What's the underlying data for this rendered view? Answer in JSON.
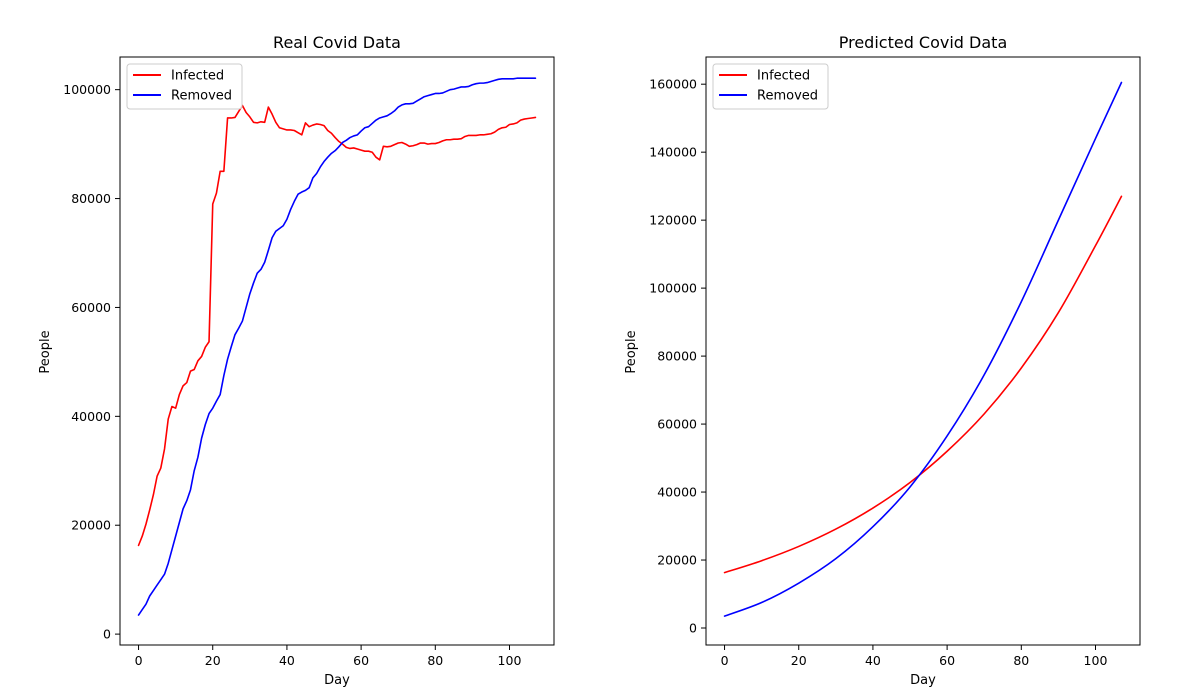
{
  "figure": {
    "background": "#ffffff",
    "axis_color": "#000000"
  },
  "chart_data": [
    {
      "type": "line",
      "title": "Real Covid Data",
      "xlabel": "Day",
      "ylabel": "People",
      "xlim": [
        -5,
        112
      ],
      "ylim": [
        -2000,
        106000
      ],
      "xticks": [
        0,
        20,
        40,
        60,
        80,
        100
      ],
      "yticks": [
        0,
        20000,
        40000,
        60000,
        80000,
        100000
      ],
      "grid": false,
      "legend_position": "top-left",
      "series": [
        {
          "name": "Infected",
          "color": "#ff0000",
          "points": [
            [
              0,
              16300
            ],
            [
              1,
              18000
            ],
            [
              2,
              20200
            ],
            [
              3,
              22800
            ],
            [
              4,
              25600
            ],
            [
              5,
              29000
            ],
            [
              6,
              30500
            ],
            [
              7,
              34000
            ],
            [
              8,
              39500
            ],
            [
              9,
              41800
            ],
            [
              10,
              41500
            ],
            [
              11,
              44000
            ],
            [
              12,
              45600
            ],
            [
              13,
              46200
            ],
            [
              14,
              48300
            ],
            [
              15,
              48600
            ],
            [
              16,
              50200
            ],
            [
              17,
              51000
            ],
            [
              18,
              52700
            ],
            [
              19,
              53700
            ],
            [
              20,
              79000
            ],
            [
              21,
              81000
            ],
            [
              22,
              85000
            ],
            [
              23,
              85000
            ],
            [
              24,
              94800
            ],
            [
              25,
              94800
            ],
            [
              26,
              94900
            ],
            [
              27,
              96000
            ],
            [
              28,
              97100
            ],
            [
              29,
              95800
            ],
            [
              30,
              95000
            ],
            [
              31,
              94000
            ],
            [
              32,
              93900
            ],
            [
              33,
              94100
            ],
            [
              34,
              94000
            ],
            [
              35,
              96800
            ],
            [
              36,
              95500
            ],
            [
              37,
              94000
            ],
            [
              38,
              93000
            ],
            [
              39,
              92800
            ],
            [
              40,
              92600
            ],
            [
              41,
              92600
            ],
            [
              42,
              92500
            ],
            [
              43,
              92100
            ],
            [
              44,
              91700
            ],
            [
              45,
              93900
            ],
            [
              46,
              93200
            ],
            [
              47,
              93500
            ],
            [
              48,
              93700
            ],
            [
              49,
              93600
            ],
            [
              50,
              93400
            ],
            [
              51,
              92500
            ],
            [
              52,
              92000
            ],
            [
              53,
              91200
            ],
            [
              54,
              90500
            ],
            [
              55,
              90000
            ],
            [
              56,
              89400
            ],
            [
              57,
              89200
            ],
            [
              58,
              89300
            ],
            [
              59,
              89100
            ],
            [
              60,
              88900
            ],
            [
              61,
              88700
            ],
            [
              62,
              88700
            ],
            [
              63,
              88500
            ],
            [
              64,
              87600
            ],
            [
              65,
              87100
            ],
            [
              66,
              89600
            ],
            [
              67,
              89500
            ],
            [
              68,
              89600
            ],
            [
              69,
              89900
            ],
            [
              70,
              90200
            ],
            [
              71,
              90300
            ],
            [
              72,
              90000
            ],
            [
              73,
              89600
            ],
            [
              74,
              89700
            ],
            [
              75,
              89900
            ],
            [
              76,
              90200
            ],
            [
              77,
              90200
            ],
            [
              78,
              90000
            ],
            [
              79,
              90100
            ],
            [
              80,
              90100
            ],
            [
              81,
              90300
            ],
            [
              82,
              90600
            ],
            [
              83,
              90800
            ],
            [
              84,
              90800
            ],
            [
              85,
              90900
            ],
            [
              86,
              90900
            ],
            [
              87,
              91000
            ],
            [
              88,
              91400
            ],
            [
              89,
              91600
            ],
            [
              90,
              91600
            ],
            [
              91,
              91600
            ],
            [
              92,
              91700
            ],
            [
              93,
              91700
            ],
            [
              94,
              91800
            ],
            [
              95,
              91900
            ],
            [
              96,
              92200
            ],
            [
              97,
              92700
            ],
            [
              98,
              93000
            ],
            [
              99,
              93100
            ],
            [
              100,
              93600
            ],
            [
              101,
              93700
            ],
            [
              102,
              93900
            ],
            [
              103,
              94400
            ],
            [
              104,
              94600
            ],
            [
              105,
              94700
            ],
            [
              106,
              94800
            ],
            [
              107,
              94900
            ]
          ]
        },
        {
          "name": "Removed",
          "color": "#0000ff",
          "points": [
            [
              0,
              3500
            ],
            [
              1,
              4500
            ],
            [
              2,
              5500
            ],
            [
              3,
              7000
            ],
            [
              4,
              8000
            ],
            [
              5,
              9000
            ],
            [
              6,
              10000
            ],
            [
              7,
              11000
            ],
            [
              8,
              13000
            ],
            [
              9,
              15500
            ],
            [
              10,
              18000
            ],
            [
              11,
              20500
            ],
            [
              12,
              23000
            ],
            [
              13,
              24500
            ],
            [
              14,
              26500
            ],
            [
              15,
              30000
            ],
            [
              16,
              32500
            ],
            [
              17,
              36000
            ],
            [
              18,
              38500
            ],
            [
              19,
              40500
            ],
            [
              20,
              41500
            ],
            [
              21,
              42800
            ],
            [
              22,
              44000
            ],
            [
              23,
              47500
            ],
            [
              24,
              50500
            ],
            [
              25,
              52800
            ],
            [
              26,
              55000
            ],
            [
              27,
              56200
            ],
            [
              28,
              57500
            ],
            [
              29,
              60000
            ],
            [
              30,
              62500
            ],
            [
              31,
              64500
            ],
            [
              32,
              66300
            ],
            [
              33,
              67000
            ],
            [
              34,
              68300
            ],
            [
              35,
              70500
            ],
            [
              36,
              72800
            ],
            [
              37,
              74000
            ],
            [
              38,
              74500
            ],
            [
              39,
              75000
            ],
            [
              40,
              76200
            ],
            [
              41,
              78000
            ],
            [
              42,
              79500
            ],
            [
              43,
              80800
            ],
            [
              44,
              81200
            ],
            [
              45,
              81500
            ],
            [
              46,
              82000
            ],
            [
              47,
              83800
            ],
            [
              48,
              84600
            ],
            [
              49,
              85800
            ],
            [
              50,
              86800
            ],
            [
              51,
              87600
            ],
            [
              52,
              88300
            ],
            [
              53,
              88800
            ],
            [
              54,
              89500
            ],
            [
              55,
              90300
            ],
            [
              56,
              90700
            ],
            [
              57,
              91200
            ],
            [
              58,
              91500
            ],
            [
              59,
              91700
            ],
            [
              60,
              92400
            ],
            [
              61,
              93000
            ],
            [
              62,
              93200
            ],
            [
              63,
              93800
            ],
            [
              64,
              94400
            ],
            [
              65,
              94800
            ],
            [
              66,
              95000
            ],
            [
              67,
              95200
            ],
            [
              68,
              95600
            ],
            [
              69,
              96100
            ],
            [
              70,
              96800
            ],
            [
              71,
              97200
            ],
            [
              72,
              97400
            ],
            [
              73,
              97400
            ],
            [
              74,
              97500
            ],
            [
              75,
              97900
            ],
            [
              76,
              98300
            ],
            [
              77,
              98700
            ],
            [
              78,
              98900
            ],
            [
              79,
              99100
            ],
            [
              80,
              99300
            ],
            [
              81,
              99300
            ],
            [
              82,
              99400
            ],
            [
              83,
              99700
            ],
            [
              84,
              100000
            ],
            [
              85,
              100100
            ],
            [
              86,
              100300
            ],
            [
              87,
              100500
            ],
            [
              88,
              100500
            ],
            [
              89,
              100600
            ],
            [
              90,
              100900
            ],
            [
              91,
              101100
            ],
            [
              92,
              101200
            ],
            [
              93,
              101200
            ],
            [
              94,
              101300
            ],
            [
              95,
              101500
            ],
            [
              96,
              101700
            ],
            [
              97,
              101900
            ],
            [
              98,
              102000
            ],
            [
              99,
              102000
            ],
            [
              100,
              102000
            ],
            [
              101,
              102000
            ],
            [
              102,
              102100
            ],
            [
              103,
              102100
            ],
            [
              104,
              102100
            ],
            [
              105,
              102100
            ],
            [
              106,
              102100
            ],
            [
              107,
              102100
            ]
          ]
        }
      ]
    },
    {
      "type": "line",
      "title": "Predicted Covid Data",
      "xlabel": "Day",
      "ylabel": "People",
      "xlim": [
        -5,
        112
      ],
      "ylim": [
        -5000,
        168000
      ],
      "xticks": [
        0,
        20,
        40,
        60,
        80,
        100
      ],
      "yticks": [
        0,
        20000,
        40000,
        60000,
        80000,
        100000,
        120000,
        140000,
        160000
      ],
      "grid": false,
      "legend_position": "top-left",
      "series": [
        {
          "name": "Infected",
          "color": "#ff0000",
          "x": [
            0,
            10,
            20,
            30,
            40,
            50,
            60,
            70,
            80,
            90,
            100,
            107
          ],
          "values": [
            16300,
            19800,
            24000,
            29100,
            35300,
            42800,
            52000,
            63000,
            76500,
            92800,
            112500,
            127000
          ]
        },
        {
          "name": "Removed",
          "color": "#0000ff",
          "x": [
            0,
            10,
            20,
            30,
            40,
            50,
            60,
            70,
            80,
            90,
            100,
            107
          ],
          "values": [
            3500,
            7500,
            13200,
            20400,
            29800,
            41500,
            56500,
            74500,
            96000,
            120000,
            144000,
            160500
          ]
        }
      ]
    }
  ]
}
